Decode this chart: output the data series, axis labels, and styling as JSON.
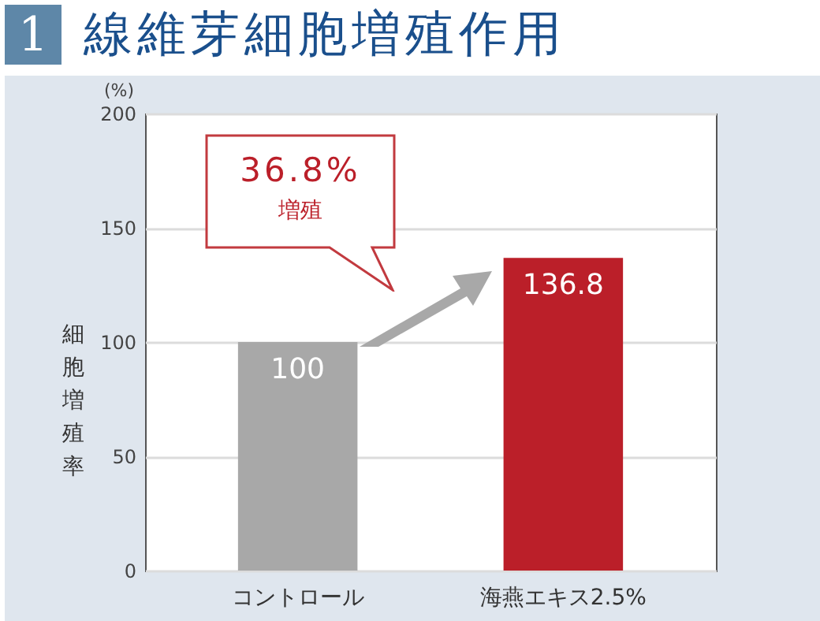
{
  "chart_data": {
    "type": "bar",
    "title": "1 線維芽細胞増殖作用",
    "ylabel": "細胞増殖率",
    "annotations": [
      "(%)",
      "36.8%",
      "増殖"
    ],
    "categories": [
      "コントロール",
      "海燕エキス2.5%"
    ],
    "values": [
      100,
      136.8
    ],
    "colors": [
      "#a8a8a8",
      "#bb1f29"
    ],
    "ylim": [
      0,
      200
    ],
    "yticks": [
      0,
      50,
      100,
      150,
      200
    ],
    "grid": "y",
    "data_labels": true
  }
}
